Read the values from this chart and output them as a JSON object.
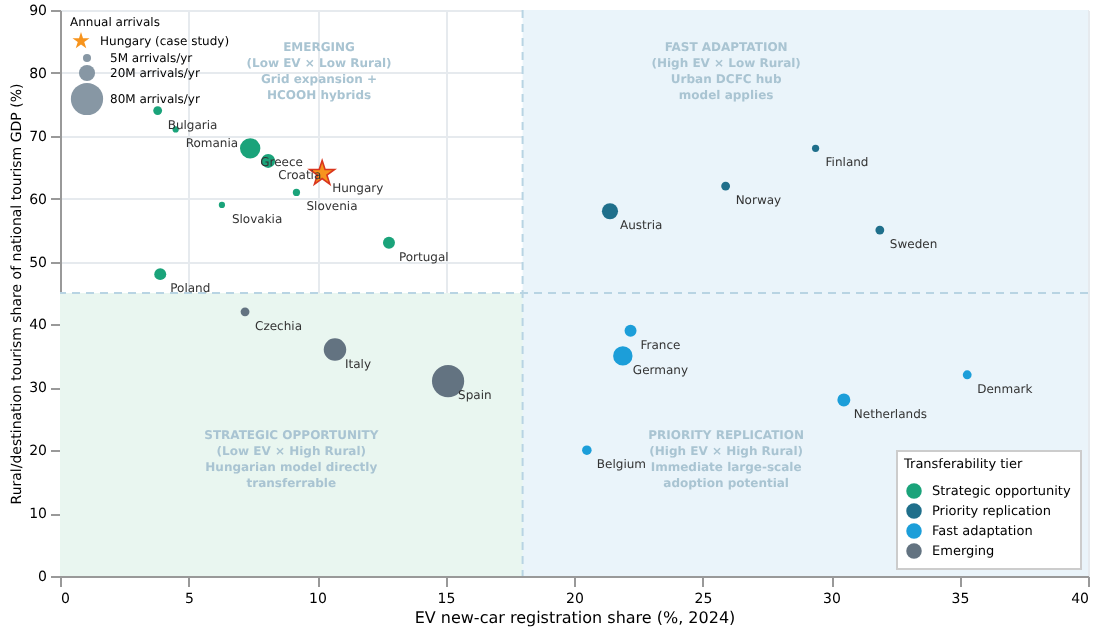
{
  "chart_data": {
    "type": "bubble",
    "xlabel": "EV new-car registration share (%, 2024)",
    "ylabel": "Rural/destination tourism share of national tourism GDP (%)",
    "legend_title": [
      "Annual arrivals",
      "Transferability tier"
    ],
    "legend": "bottom right",
    "xlim": [
      0,
      40
    ],
    "xticks": [
      0,
      5,
      10,
      15,
      20,
      25,
      30,
      35,
      40
    ],
    "ylim": [
      0,
      90
    ],
    "yticks": [
      0,
      10,
      20,
      30,
      40,
      50,
      60,
      70,
      80,
      90
    ],
    "grid": true,
    "size_legend": [
      {
        "value": 5,
        "label": "5M arrivals/yr"
      },
      {
        "value": 20,
        "label": "20M arrivals/yr"
      },
      {
        "value": 80,
        "label": "80M arrivals/yr"
      }
    ],
    "series": [
      {
        "name": "Strategic opportunity",
        "color": "#1aa37a",
        "x": [
          3.8,
          4.5,
          7.4,
          8.1,
          6.3,
          9.2,
          12.8,
          3.9
        ],
        "values": [
          74,
          71,
          68,
          66,
          59,
          61,
          53,
          48
        ],
        "sizes": [
          6,
          3,
          32,
          15,
          3,
          4,
          11,
          11
        ]
      },
      {
        "name": "Priority replication",
        "color": "#1f6f8b",
        "x": [
          21.4,
          25.9,
          29.4,
          31.9
        ],
        "values": [
          58,
          62,
          68,
          55
        ],
        "sizes": [
          20,
          6,
          4,
          6
        ]
      },
      {
        "name": "Fast adaptation",
        "color": "#1c9ed9",
        "x": [
          22.2,
          21.9,
          35.3,
          30.5,
          20.5
        ],
        "values": [
          39,
          35,
          32,
          28,
          20
        ],
        "sizes": [
          11,
          29,
          6,
          13,
          7
        ]
      },
      {
        "name": "Emerging",
        "color": "#637381",
        "x": [
          7.2,
          10.7,
          15.1
        ],
        "values": [
          42,
          36,
          31
        ],
        "sizes": [
          6,
          39,
          80
        ]
      },
      {
        "name": "Hungary (case study)",
        "type": "scatter",
        "marker": "star",
        "color": "#f7941d",
        "x": [
          10.2
        ],
        "values": [
          64
        ]
      }
    ],
    "bands": [
      {
        "axis": "y",
        "from": 0,
        "to": 45,
        "color": "#e9f6f0"
      },
      {
        "axis": "x",
        "from": 18,
        "to": 40,
        "color": "#eaf4fa"
      }
    ],
    "ref_lines": [
      {
        "axis": "x",
        "value": 18,
        "color": "#b8d4e3",
        "line_style": "dashed"
      },
      {
        "axis": "y",
        "value": 45,
        "color": "#b8d4e3",
        "line_style": "dashed"
      }
    ],
    "annotations": [
      {
        "text": "Bulgaria",
        "x": 3.8,
        "y": 74
      },
      {
        "text": "Romania",
        "x": 4.5,
        "y": 71
      },
      {
        "text": "Greece",
        "x": 7.4,
        "y": 68
      },
      {
        "text": "Croatia",
        "x": 8.1,
        "y": 66
      },
      {
        "text": "Hungary",
        "x": 10.2,
        "y": 64
      },
      {
        "text": "Slovakia",
        "x": 6.3,
        "y": 59
      },
      {
        "text": "Slovenia",
        "x": 9.2,
        "y": 61
      },
      {
        "text": "Portugal",
        "x": 12.8,
        "y": 53
      },
      {
        "text": "Poland",
        "x": 3.9,
        "y": 48
      },
      {
        "text": "Czechia",
        "x": 7.2,
        "y": 42
      },
      {
        "text": "Italy",
        "x": 10.7,
        "y": 36
      },
      {
        "text": "Spain",
        "x": 15.1,
        "y": 31
      },
      {
        "text": "Austria",
        "x": 21.4,
        "y": 58
      },
      {
        "text": "Norway",
        "x": 25.9,
        "y": 62
      },
      {
        "text": "Finland",
        "x": 29.4,
        "y": 68
      },
      {
        "text": "Sweden",
        "x": 31.9,
        "y": 55
      },
      {
        "text": "France",
        "x": 22.2,
        "y": 39
      },
      {
        "text": "Germany",
        "x": 21.9,
        "y": 35
      },
      {
        "text": "Denmark",
        "x": 35.3,
        "y": 32
      },
      {
        "text": "Netherlands",
        "x": 30.5,
        "y": 28
      },
      {
        "text": "Belgium",
        "x": 20.5,
        "y": 20
      },
      "EMERGING\n(Low EV × Low Rural)\nGrid expansion +\nHCOOH hybrids",
      "FAST ADAPTATION\n(High EV × Low Rural)\nUrban DCFC hub\nmodel applies",
      "STRATEGIC OPPORTUNITY\n(Low EV × High Rural)\nHungarian model directly\ntransferrable",
      "PRIORITY REPLICATION\n(High EV × High Rural)\nImmediate large-scale\nadoption potential"
    ]
  }
}
